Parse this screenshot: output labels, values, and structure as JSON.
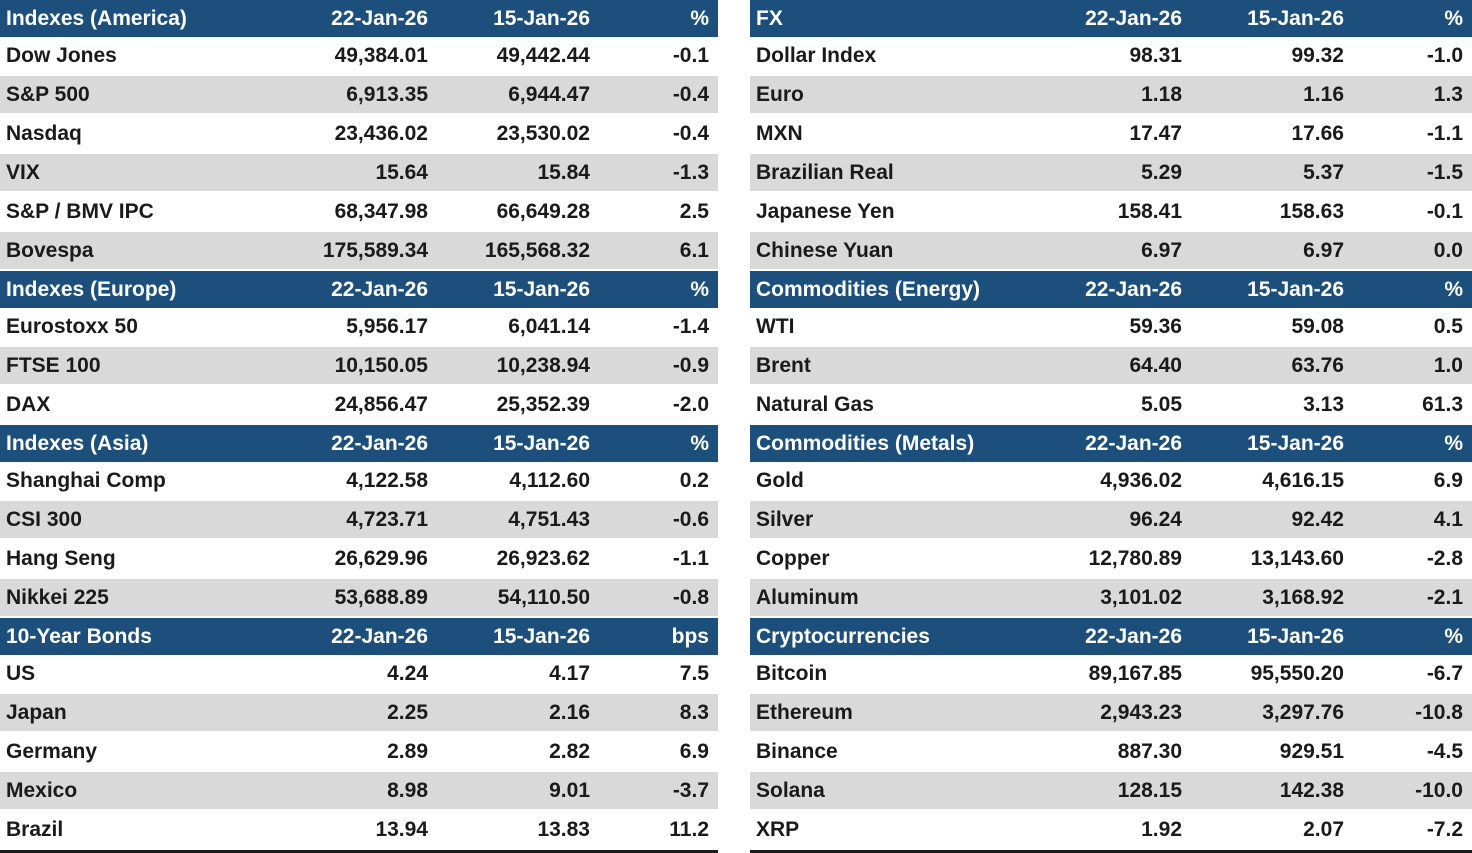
{
  "colors": {
    "header_bg": "#1C4F7C",
    "header_text": "#FFFFFF",
    "alt_row_bg": "#D9D9D9",
    "text": "#1A1A1A",
    "table_bottom_border": "#1A1A1A"
  },
  "tables": {
    "left": [
      {
        "title": "Indexes (America)",
        "columns": {
          "date_1": "22-Jan-26",
          "date_2": "15-Jan-26",
          "change_unit": "%"
        },
        "rows": [
          {
            "name": "Dow Jones",
            "current": "49,384.01",
            "previous": "49,442.44",
            "change": "-0.1"
          },
          {
            "name": "S&P 500",
            "current": "6,913.35",
            "previous": "6,944.47",
            "change": "-0.4"
          },
          {
            "name": "Nasdaq",
            "current": "23,436.02",
            "previous": "23,530.02",
            "change": "-0.4"
          },
          {
            "name": "VIX",
            "current": "15.64",
            "previous": "15.84",
            "change": "-1.3"
          },
          {
            "name": "S&P / BMV IPC",
            "current": "68,347.98",
            "previous": "66,649.28",
            "change": "2.5"
          },
          {
            "name": "Bovespa",
            "current": "175,589.34",
            "previous": "165,568.32",
            "change": "6.1"
          }
        ]
      },
      {
        "title": "Indexes (Europe)",
        "columns": {
          "date_1": "22-Jan-26",
          "date_2": "15-Jan-26",
          "change_unit": "%"
        },
        "rows": [
          {
            "name": "Eurostoxx 50",
            "current": "5,956.17",
            "previous": "6,041.14",
            "change": "-1.4"
          },
          {
            "name": "FTSE 100",
            "current": "10,150.05",
            "previous": "10,238.94",
            "change": "-0.9"
          },
          {
            "name": "DAX",
            "current": "24,856.47",
            "previous": "25,352.39",
            "change": "-2.0"
          }
        ]
      },
      {
        "title": "Indexes (Asia)",
        "columns": {
          "date_1": "22-Jan-26",
          "date_2": "15-Jan-26",
          "change_unit": "%"
        },
        "rows": [
          {
            "name": "Shanghai Comp",
            "current": "4,122.58",
            "previous": "4,112.60",
            "change": "0.2"
          },
          {
            "name": "CSI 300",
            "current": "4,723.71",
            "previous": "4,751.43",
            "change": "-0.6"
          },
          {
            "name": "Hang Seng",
            "current": "26,629.96",
            "previous": "26,923.62",
            "change": "-1.1"
          },
          {
            "name": "Nikkei 225",
            "current": "53,688.89",
            "previous": "54,110.50",
            "change": "-0.8"
          }
        ]
      },
      {
        "title": "10-Year Bonds",
        "columns": {
          "date_1": "22-Jan-26",
          "date_2": "15-Jan-26",
          "change_unit": "bps"
        },
        "rows": [
          {
            "name": "US",
            "current": "4.24",
            "previous": "4.17",
            "change": "7.5"
          },
          {
            "name": "Japan",
            "current": "2.25",
            "previous": "2.16",
            "change": "8.3"
          },
          {
            "name": "Germany",
            "current": "2.89",
            "previous": "2.82",
            "change": "6.9"
          },
          {
            "name": "Mexico",
            "current": "8.98",
            "previous": "9.01",
            "change": "-3.7"
          },
          {
            "name": "Brazil",
            "current": "13.94",
            "previous": "13.83",
            "change": "11.2"
          }
        ]
      }
    ],
    "right": [
      {
        "title": "FX",
        "columns": {
          "date_1": "22-Jan-26",
          "date_2": "15-Jan-26",
          "change_unit": "%"
        },
        "rows": [
          {
            "name": "Dollar Index",
            "current": "98.31",
            "previous": "99.32",
            "change": "-1.0"
          },
          {
            "name": "Euro",
            "current": "1.18",
            "previous": "1.16",
            "change": "1.3"
          },
          {
            "name": "MXN",
            "current": "17.47",
            "previous": "17.66",
            "change": "-1.1"
          },
          {
            "name": "Brazilian Real",
            "current": "5.29",
            "previous": "5.37",
            "change": "-1.5"
          },
          {
            "name": "Japanese Yen",
            "current": "158.41",
            "previous": "158.63",
            "change": "-0.1"
          },
          {
            "name": "Chinese Yuan",
            "current": "6.97",
            "previous": "6.97",
            "change": "0.0"
          }
        ]
      },
      {
        "title": "Commodities (Energy)",
        "columns": {
          "date_1": "22-Jan-26",
          "date_2": "15-Jan-26",
          "change_unit": "%"
        },
        "rows": [
          {
            "name": "WTI",
            "current": "59.36",
            "previous": "59.08",
            "change": "0.5"
          },
          {
            "name": "Brent",
            "current": "64.40",
            "previous": "63.76",
            "change": "1.0"
          },
          {
            "name": "Natural Gas",
            "current": "5.05",
            "previous": "3.13",
            "change": "61.3"
          }
        ]
      },
      {
        "title": "Commodities (Metals)",
        "columns": {
          "date_1": "22-Jan-26",
          "date_2": "15-Jan-26",
          "change_unit": "%"
        },
        "rows": [
          {
            "name": "Gold",
            "current": "4,936.02",
            "previous": "4,616.15",
            "change": "6.9"
          },
          {
            "name": "Silver",
            "current": "96.24",
            "previous": "92.42",
            "change": "4.1"
          },
          {
            "name": "Copper",
            "current": "12,780.89",
            "previous": "13,143.60",
            "change": "-2.8"
          },
          {
            "name": "Aluminum",
            "current": "3,101.02",
            "previous": "3,168.92",
            "change": "-2.1"
          }
        ]
      },
      {
        "title": "Cryptocurrencies",
        "columns": {
          "date_1": "22-Jan-26",
          "date_2": "15-Jan-26",
          "change_unit": "%"
        },
        "rows": [
          {
            "name": "Bitcoin",
            "current": "89,167.85",
            "previous": "95,550.20",
            "change": "-6.7"
          },
          {
            "name": "Ethereum",
            "current": "2,943.23",
            "previous": "3,297.76",
            "change": "-10.8"
          },
          {
            "name": "Binance",
            "current": "887.30",
            "previous": "929.51",
            "change": "-4.5"
          },
          {
            "name": "Solana",
            "current": "128.15",
            "previous": "142.38",
            "change": "-10.0"
          },
          {
            "name": "XRP",
            "current": "1.92",
            "previous": "2.07",
            "change": "-7.2"
          }
        ]
      }
    ]
  }
}
